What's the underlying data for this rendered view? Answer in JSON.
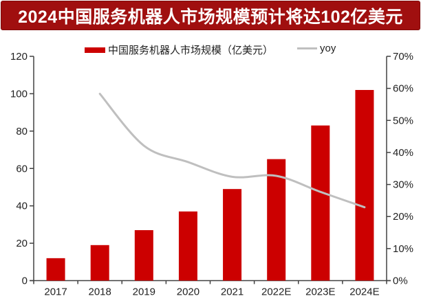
{
  "banner": {
    "title": "2024中国服务机器人市场规模预计将达102亿美元"
  },
  "legend": {
    "items": [
      {
        "label": "中国服务机器人市场规模（亿美元）",
        "swatch": "bar-swatch-icon"
      },
      {
        "label": "yoy",
        "swatch": "line-swatch-icon"
      }
    ]
  },
  "colors": {
    "banner_bg": "#A00F0F",
    "banner_border": "#7E0909",
    "banner_text": "#FFFFFF",
    "bar": "#CC0000",
    "line": "#BFBFBF",
    "axis": "#404040",
    "text": "#1F1F1F"
  },
  "chart_data": {
    "type": "bar+line-combo",
    "title": "2024中国服务机器人市场规模预计将达102亿美元",
    "categories": [
      "2017",
      "2018",
      "2019",
      "2020",
      "2021",
      "2022E",
      "2023E",
      "2024E"
    ],
    "series": [
      {
        "name": "中国服务机器人市场规模（亿美元）",
        "type": "bar",
        "axis": "left",
        "values": [
          12,
          19,
          27,
          37,
          49,
          65,
          83,
          102
        ]
      },
      {
        "name": "yoy",
        "type": "line",
        "axis": "right",
        "values_percent": [
          null,
          58.3,
          42.1,
          37.0,
          32.4,
          32.7,
          27.7,
          22.9
        ]
      }
    ],
    "left_axis": {
      "min": 0,
      "max": 120,
      "tick_step": 20,
      "tick_labels": [
        "0",
        "20",
        "40",
        "60",
        "80",
        "100",
        "120"
      ]
    },
    "right_axis": {
      "min": 0,
      "max": 70,
      "tick_step": 10,
      "tick_labels": [
        "0%",
        "10%",
        "20%",
        "30%",
        "40%",
        "50%",
        "60%",
        "70%"
      ]
    },
    "grid": false,
    "legend_position": "top",
    "line_smoothing": true
  }
}
